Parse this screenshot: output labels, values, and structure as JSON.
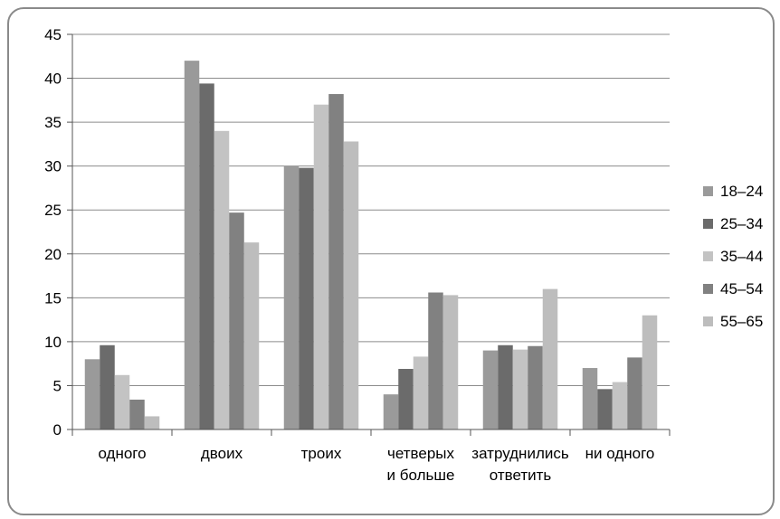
{
  "chart_data": {
    "type": "bar",
    "title": "",
    "xlabel": "",
    "ylabel": "",
    "ylim": [
      0,
      45
    ],
    "y_ticks": [
      "0",
      "5",
      "10",
      "15",
      "20",
      "25",
      "30",
      "35",
      "40",
      "45"
    ],
    "grid": true,
    "legend_position": "right",
    "categories": [
      [
        "одного"
      ],
      [
        "двоих"
      ],
      [
        "троих"
      ],
      [
        "четверых",
        "и больше"
      ],
      [
        "затруднились",
        "ответить"
      ],
      [
        "ни одного"
      ]
    ],
    "series": [
      {
        "name": "18–24",
        "color": "#9a9a9a",
        "values": [
          8,
          42,
          30,
          4,
          9,
          7
        ]
      },
      {
        "name": "25–34",
        "color": "#6b6b6b",
        "values": [
          9.6,
          39.4,
          29.8,
          6.9,
          9.6,
          4.6
        ]
      },
      {
        "name": "35–44",
        "color": "#c3c3c3",
        "values": [
          6.2,
          34,
          37,
          8.3,
          9.1,
          5.4
        ]
      },
      {
        "name": "45–54",
        "color": "#818181",
        "values": [
          3.4,
          24.7,
          38.2,
          15.6,
          9.5,
          8.2
        ]
      },
      {
        "name": "55–65",
        "color": "#bdbdbd",
        "values": [
          1.5,
          21.3,
          32.8,
          15.3,
          16,
          13
        ]
      }
    ]
  }
}
